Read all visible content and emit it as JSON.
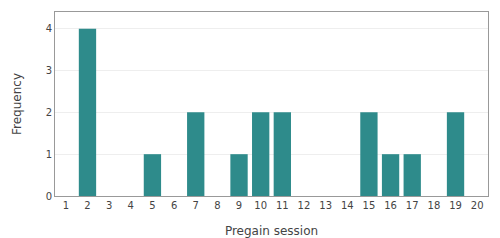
{
  "chart_data": {
    "type": "bar",
    "x": [
      1,
      2,
      3,
      4,
      5,
      6,
      7,
      8,
      9,
      10,
      11,
      12,
      13,
      14,
      15,
      16,
      17,
      18,
      19,
      20
    ],
    "values": [
      0,
      4,
      0,
      0,
      1,
      0,
      2,
      0,
      1,
      2,
      2,
      0,
      0,
      0,
      2,
      1,
      1,
      0,
      2,
      0
    ],
    "color": "#2e8b8b",
    "xlabel": "Pregain session",
    "ylabel": "Frequency",
    "xlim": [
      0.5,
      20.5
    ],
    "xticks": [
      1,
      2,
      3,
      4,
      5,
      6,
      7,
      8,
      9,
      10,
      11,
      12,
      13,
      14,
      15,
      16,
      17,
      18,
      19,
      20
    ],
    "ylim": [
      0,
      4.4
    ],
    "yticks": [
      0,
      1,
      2,
      3,
      4
    ],
    "grid": true
  }
}
